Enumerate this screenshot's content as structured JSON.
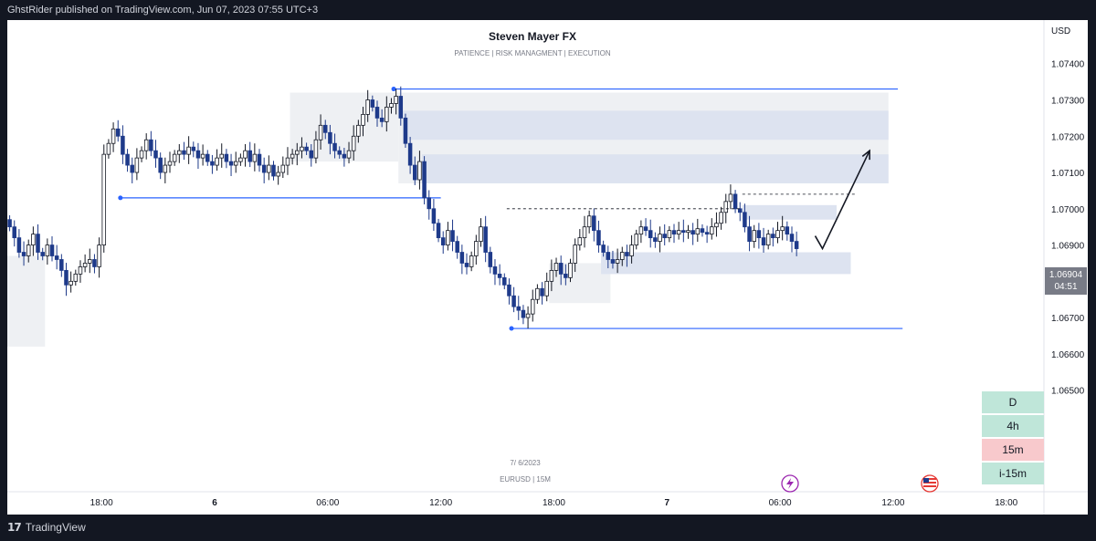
{
  "header": {
    "publisher_line": "GhstRider published on TradingView.com, Jun 07, 2023 07:55 UTC+3"
  },
  "footer": {
    "brand": "TradingView"
  },
  "colors": {
    "accent_blue": "#2962ff",
    "zone_grey": "#eef0f3",
    "zone_blue": "#dde3f0",
    "bull": "#ffffff",
    "bear": "#1e3a8a"
  },
  "chart_data": {
    "type": "candlestick",
    "title": "Steven Mayer FX",
    "subtitle": "PATIENCE  | RISK MANAGMENT  |  EXECUTION",
    "watermark_date": "7/ 6/2023",
    "watermark_symbol": "EURUSD | 15M",
    "currency": "USD",
    "price_axis": {
      "ylim": [
        1.0622,
        1.0752
      ],
      "ticks": [
        "1.07400",
        "1.07300",
        "1.07200",
        "1.07100",
        "1.07000",
        "1.06900",
        "1.06800",
        "1.06700",
        "1.06600",
        "1.06500"
      ]
    },
    "current_price": {
      "value": "1.06904",
      "countdown": "04:51"
    },
    "time_axis": {
      "xlim": [
        "2023-06-05 13:00",
        "2023-06-07 20:00"
      ],
      "ticks": [
        {
          "label": "18:00",
          "time": "2023-06-05 18:00",
          "bold": false
        },
        {
          "label": "6",
          "time": "2023-06-06 00:00",
          "bold": true
        },
        {
          "label": "06:00",
          "time": "2023-06-06 06:00",
          "bold": false
        },
        {
          "label": "12:00",
          "time": "2023-06-06 12:00",
          "bold": false
        },
        {
          "label": "18:00",
          "time": "2023-06-06 18:00",
          "bold": false
        },
        {
          "label": "7",
          "time": "2023-06-07 00:00",
          "bold": true
        },
        {
          "label": "06:00",
          "time": "2023-06-07 06:00",
          "bold": false
        },
        {
          "label": "12:00",
          "time": "2023-06-07 12:00",
          "bold": false
        },
        {
          "label": "18:00",
          "time": "2023-06-07 18:00",
          "bold": false
        }
      ]
    },
    "closes": [
      1.0695,
      1.0692,
      1.0688,
      1.0687,
      1.069,
      1.0693,
      1.0688,
      1.0687,
      1.069,
      1.0687,
      1.0686,
      1.0683,
      1.0679,
      1.068,
      1.0682,
      1.0684,
      1.0685,
      1.0686,
      1.0684,
      1.069,
      1.0715,
      1.0718,
      1.0722,
      1.072,
      1.0715,
      1.0712,
      1.071,
      1.0714,
      1.0716,
      1.0719,
      1.0716,
      1.0714,
      1.071,
      1.0712,
      1.0713,
      1.0715,
      1.0716,
      1.0715,
      1.0717,
      1.0716,
      1.0714,
      1.0715,
      1.0713,
      1.0712,
      1.0714,
      1.0715,
      1.0713,
      1.0712,
      1.0713,
      1.0714,
      1.0716,
      1.0713,
      1.0715,
      1.0712,
      1.071,
      1.0712,
      1.0709,
      1.071,
      1.0712,
      1.0714,
      1.0715,
      1.0716,
      1.0717,
      1.0716,
      1.0714,
      1.0719,
      1.0723,
      1.0721,
      1.0718,
      1.0716,
      1.0715,
      1.0714,
      1.0716,
      1.072,
      1.0723,
      1.0726,
      1.073,
      1.0728,
      1.0725,
      1.0724,
      1.0728,
      1.0729,
      1.0731,
      1.0725,
      1.0718,
      1.0712,
      1.0708,
      1.0713,
      1.0703,
      1.07,
      1.0696,
      1.0692,
      1.069,
      1.0694,
      1.0691,
      1.0688,
      1.0685,
      1.0684,
      1.0687,
      1.0691,
      1.0695,
      1.0688,
      1.0684,
      1.0682,
      1.0681,
      1.0679,
      1.0676,
      1.0673,
      1.0672,
      1.067,
      1.0671,
      1.0675,
      1.0678,
      1.0676,
      1.068,
      1.0683,
      1.0685,
      1.0682,
      1.0681,
      1.0685,
      1.069,
      1.0692,
      1.0695,
      1.0698,
      1.0694,
      1.069,
      1.0688,
      1.0686,
      1.0685,
      1.0686,
      1.0688,
      1.0687,
      1.069,
      1.0693,
      1.0695,
      1.0694,
      1.0692,
      1.0691,
      1.0693,
      1.0692,
      1.0694,
      1.0693,
      1.0694,
      1.06935,
      1.0694,
      1.0693,
      1.06945,
      1.06935,
      1.0693,
      1.0695,
      1.0696,
      1.0699,
      1.0702,
      1.0704,
      1.07,
      1.0699,
      1.0695,
      1.0691,
      1.0694,
      1.0692,
      1.069,
      1.0693,
      1.0692,
      1.0694,
      1.0695,
      1.0693,
      1.0691,
      1.0689
    ],
    "levels": [
      {
        "price": 1.0733,
        "from": "2023-06-06 09:30",
        "to": "2023-06-07 12:15"
      },
      {
        "price": 1.0703,
        "from": "2023-06-05 19:00",
        "to": "2023-06-06 12:00"
      },
      {
        "price": 1.0667,
        "from": "2023-06-06 15:45",
        "to": "2023-06-07 12:30"
      }
    ],
    "zones": [
      {
        "kind": "grey",
        "from": "2023-06-05 13:00",
        "to": "2023-06-05 15:00",
        "top": 1.0687,
        "bottom": 1.0662
      },
      {
        "kind": "grey",
        "from": "2023-06-06 04:00",
        "to": "2023-06-06 09:45",
        "top": 1.0732,
        "bottom": 1.0713
      },
      {
        "kind": "grey",
        "from": "2023-06-06 09:45",
        "to": "2023-06-07 11:45",
        "top": 1.0732,
        "bottom": 1.0707
      },
      {
        "kind": "blue",
        "from": "2023-06-06 10:00",
        "to": "2023-06-07 11:45",
        "top": 1.0727,
        "bottom": 1.0719
      },
      {
        "kind": "blue",
        "from": "2023-06-06 11:00",
        "to": "2023-06-07 11:45",
        "top": 1.0715,
        "bottom": 1.0707
      },
      {
        "kind": "grey",
        "from": "2023-06-06 17:45",
        "to": "2023-06-06 21:00",
        "top": 1.0685,
        "bottom": 1.0674
      },
      {
        "kind": "blue",
        "from": "2023-06-06 20:30",
        "to": "2023-06-07 09:45",
        "top": 1.0688,
        "bottom": 1.0682
      },
      {
        "kind": "blue",
        "from": "2023-06-07 04:00",
        "to": "2023-06-07 09:00",
        "top": 1.0701,
        "bottom": 1.0697
      }
    ],
    "annotations": [
      {
        "type": "dashed",
        "price": 1.07,
        "from": "2023-06-06 15:30",
        "to": "2023-06-07 04:00"
      },
      {
        "type": "dashed",
        "price": 1.0704,
        "from": "2023-06-07 04:00",
        "to": "2023-06-07 10:00"
      },
      {
        "type": "arrow",
        "from_time": "2023-06-07 08:15",
        "from_price": 1.0689,
        "to_time": "2023-06-07 10:45",
        "to_price": 1.0716
      }
    ]
  },
  "timeframes": [
    {
      "label": "D",
      "color": "#bfe6d9"
    },
    {
      "label": "4h",
      "color": "#bfe6d9"
    },
    {
      "label": "15m",
      "color": "#f8c9cc"
    },
    {
      "label": "i-15m",
      "color": "#bfe6d9"
    }
  ],
  "time_axis_icons": [
    "lightning-icon",
    "us-flag-icon"
  ]
}
